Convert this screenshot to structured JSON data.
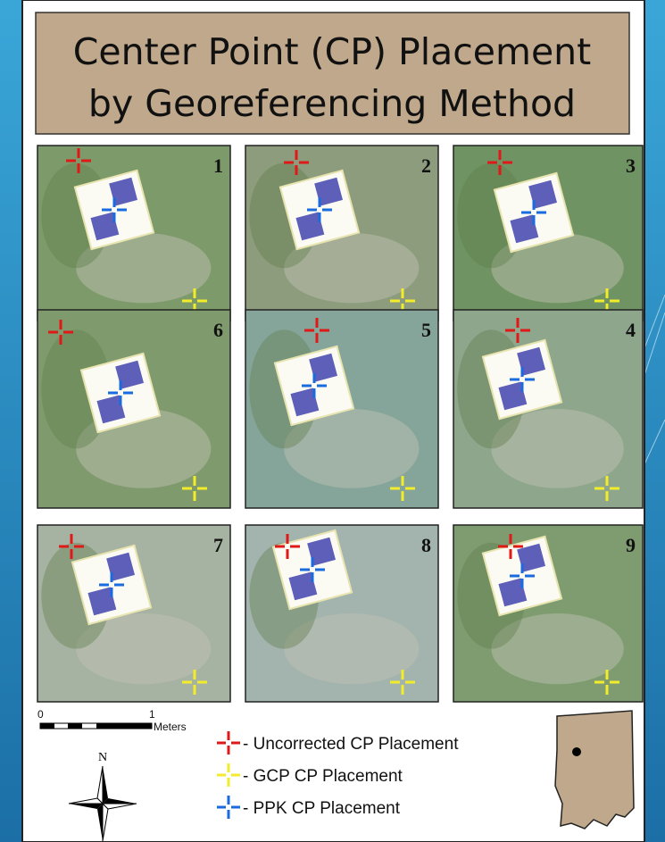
{
  "title": {
    "line1": "Center Point (CP) Placement",
    "line2": "by Georeferencing Method"
  },
  "tiles": [
    {
      "label": "1"
    },
    {
      "label": "2"
    },
    {
      "label": "3"
    },
    {
      "label": "6"
    },
    {
      "label": "5"
    },
    {
      "label": "4"
    },
    {
      "label": "7"
    },
    {
      "label": "8"
    },
    {
      "label": "9"
    }
  ],
  "scale_bar": {
    "start": "0",
    "end": "1",
    "unit": "Meters"
  },
  "north": "N",
  "legend": [
    {
      "label": "- Uncorrected CP Placement"
    },
    {
      "label": "- GCP CP Placement"
    },
    {
      "label": "- PPK CP Placement"
    }
  ]
}
